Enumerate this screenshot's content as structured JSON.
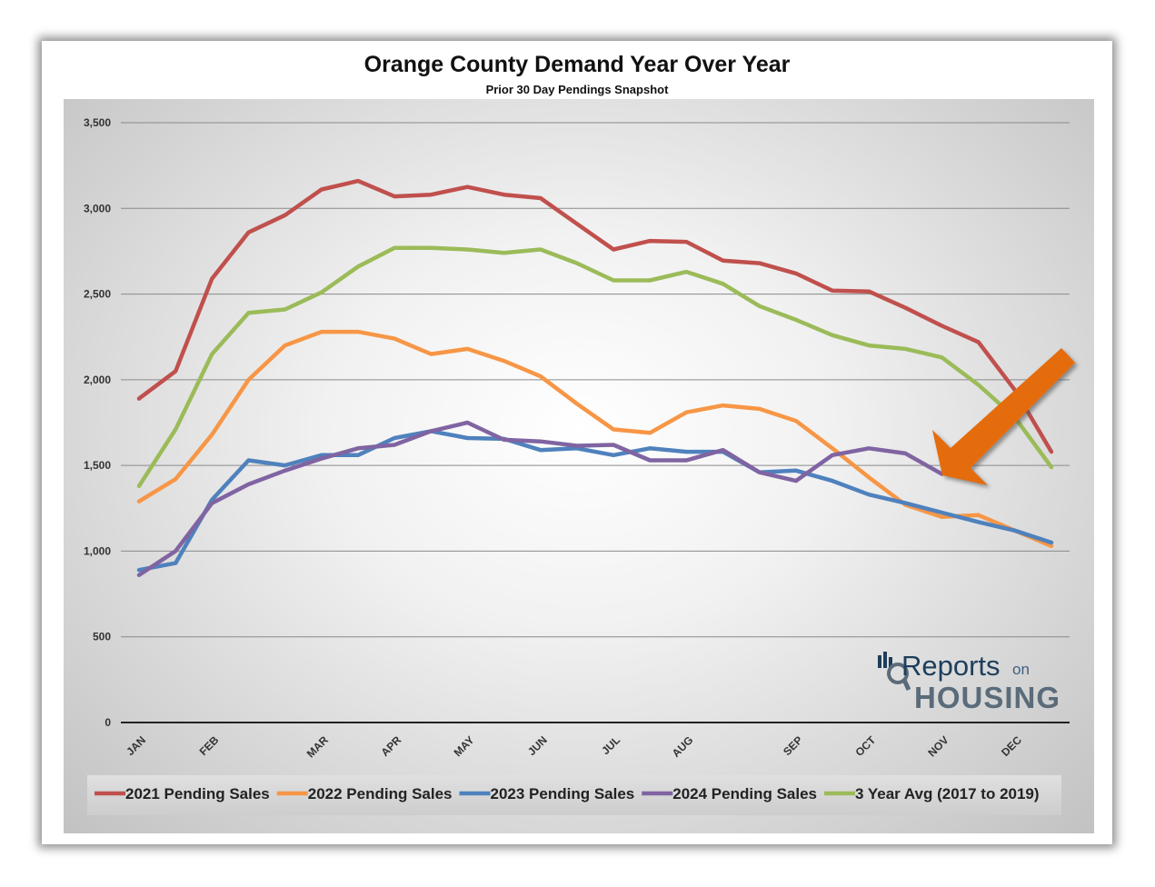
{
  "chart_data": {
    "type": "line",
    "title": "Orange County Demand Year Over Year",
    "subtitle": "Prior 30 Day Pendings Snapshot",
    "ylim": [
      0,
      3500
    ],
    "yticks": [
      0,
      500,
      1000,
      1500,
      2000,
      2500,
      3000,
      3500
    ],
    "ytick_labels": [
      "0",
      "500",
      "1,000",
      "1,500",
      "2,000",
      "2,500",
      "3,000",
      "3,500"
    ],
    "month_labels": [
      "JAN",
      "FEB",
      "MAR",
      "APR",
      "MAY",
      "JUN",
      "JUL",
      "AUG",
      "SEP",
      "OCT",
      "NOV",
      "DEC"
    ],
    "month_positions": [
      0,
      2,
      5,
      7,
      9,
      11,
      13,
      15,
      18,
      20,
      22,
      24
    ],
    "x_count": 26,
    "grid": true,
    "legend_position": "bottom",
    "series": [
      {
        "name": "2021 Pending Sales",
        "color": "#c0504d",
        "values": [
          1890,
          2050,
          2590,
          2860,
          2960,
          3110,
          3160,
          3070,
          3080,
          3125,
          3080,
          3060,
          2910,
          2760,
          2810,
          2805,
          2695,
          2680,
          2620,
          2520,
          2515,
          2420,
          2315,
          2220,
          1940,
          1580
        ]
      },
      {
        "name": "2022 Pending Sales",
        "color": "#f79646",
        "values": [
          1290,
          1420,
          1680,
          2000,
          2200,
          2280,
          2280,
          2240,
          2150,
          2180,
          2110,
          2020,
          1860,
          1710,
          1690,
          1810,
          1850,
          1830,
          1760,
          1600,
          1430,
          1270,
          1200,
          1210,
          1120,
          1030
        ]
      },
      {
        "name": "2023 Pending Sales",
        "color": "#4f81bd",
        "values": [
          890,
          930,
          1300,
          1530,
          1500,
          1560,
          1560,
          1660,
          1700,
          1660,
          1655,
          1590,
          1600,
          1560,
          1600,
          1580,
          1580,
          1460,
          1470,
          1410,
          1330,
          1280,
          1225,
          1170,
          1120,
          1050
        ]
      },
      {
        "name": "2024 Pending Sales",
        "color": "#8064a2",
        "values": [
          860,
          1000,
          1280,
          1390,
          1470,
          1540,
          1600,
          1620,
          1700,
          1750,
          1650,
          1640,
          1615,
          1620,
          1530,
          1530,
          1590,
          1460,
          1410,
          1560,
          1600,
          1570,
          1450
        ]
      },
      {
        "name": "3 Year Avg (2017 to 2019)",
        "color": "#9bbb59",
        "values": [
          1380,
          1710,
          2150,
          2390,
          2410,
          2510,
          2660,
          2770,
          2770,
          2760,
          2740,
          2760,
          2680,
          2580,
          2580,
          2630,
          2560,
          2430,
          2350,
          2260,
          2200,
          2180,
          2130,
          1970,
          1780,
          1490
        ]
      }
    ]
  },
  "arrow": {
    "color": "#e46c0a"
  },
  "logo": {
    "word1": "Reports",
    "word2": "on",
    "word3": "HOUSING"
  }
}
